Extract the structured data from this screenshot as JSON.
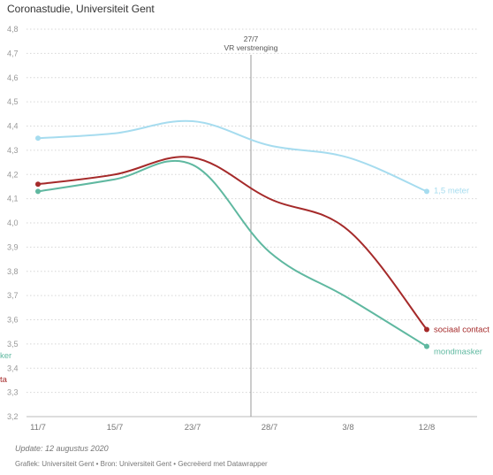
{
  "title": "Coronastudie, Universiteit Gent",
  "footer": {
    "update": "Update: 12 augustus 2020",
    "credits": "Grafiek: Universiteit Gent • Bron: Universiteit Gent • Gecreëerd met Datawrapper"
  },
  "chart_data": {
    "type": "line",
    "categories": [
      "11/7",
      "15/7",
      "23/7",
      "28/7",
      "3/8",
      "12/8"
    ],
    "ylim": [
      3.2,
      4.8
    ],
    "y_ticks": [
      "4,8",
      "4,7",
      "4,6",
      "4,5",
      "4,4",
      "4,3",
      "4,2",
      "4,1",
      "4,0",
      "3,9",
      "3,8",
      "3,7",
      "3,6",
      "3,5",
      "3,4",
      "3,3",
      "3,2"
    ],
    "grid": "horizontal-dotted",
    "annotation": {
      "label_line1": "27/7",
      "label_line2": "VR verstrenging"
    },
    "series": [
      {
        "name": "1,5 meter",
        "color": "#a6dcef",
        "values": [
          4.35,
          4.37,
          4.42,
          4.32,
          4.27,
          4.13
        ],
        "left_label": ""
      },
      {
        "name": "sociaal contact",
        "color": "#a52a2a",
        "values": [
          4.16,
          4.2,
          4.27,
          4.1,
          3.97,
          3.56
        ],
        "left_label": "ta"
      },
      {
        "name": "mondmasker",
        "color": "#5fb8a0",
        "values": [
          4.13,
          4.18,
          4.24,
          3.88,
          3.69,
          3.49
        ],
        "left_label": "ker"
      }
    ]
  }
}
